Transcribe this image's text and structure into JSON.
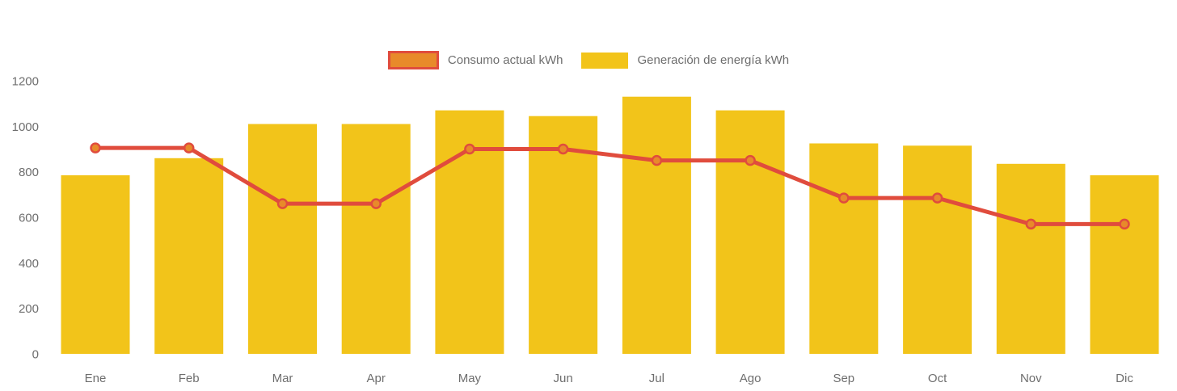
{
  "chart_data": {
    "type": "bar",
    "title": "",
    "xlabel": "",
    "ylabel": "",
    "categories": [
      "Ene",
      "Feb",
      "Mar",
      "Apr",
      "May",
      "Jun",
      "Jul",
      "Ago",
      "Sep",
      "Oct",
      "Nov",
      "Dic"
    ],
    "series": [
      {
        "name": "Consumo actual kWh",
        "type": "line",
        "color": "#E04C3D",
        "marker_fill": "#E88A2A",
        "values": [
          905,
          905,
          660,
          660,
          900,
          900,
          850,
          850,
          685,
          685,
          570,
          570
        ]
      },
      {
        "name": "Generación de energía kWh",
        "type": "bar",
        "color": "#F2C41A",
        "values": [
          785,
          860,
          1010,
          1010,
          1070,
          1045,
          1130,
          1070,
          925,
          915,
          835,
          785
        ]
      }
    ],
    "ylim": [
      0,
      1200
    ],
    "yticks": [
      0,
      200,
      400,
      600,
      800,
      1000,
      1200
    ],
    "grid": false,
    "legend_position": "top",
    "axis_label_color": "#6E6E6E"
  }
}
